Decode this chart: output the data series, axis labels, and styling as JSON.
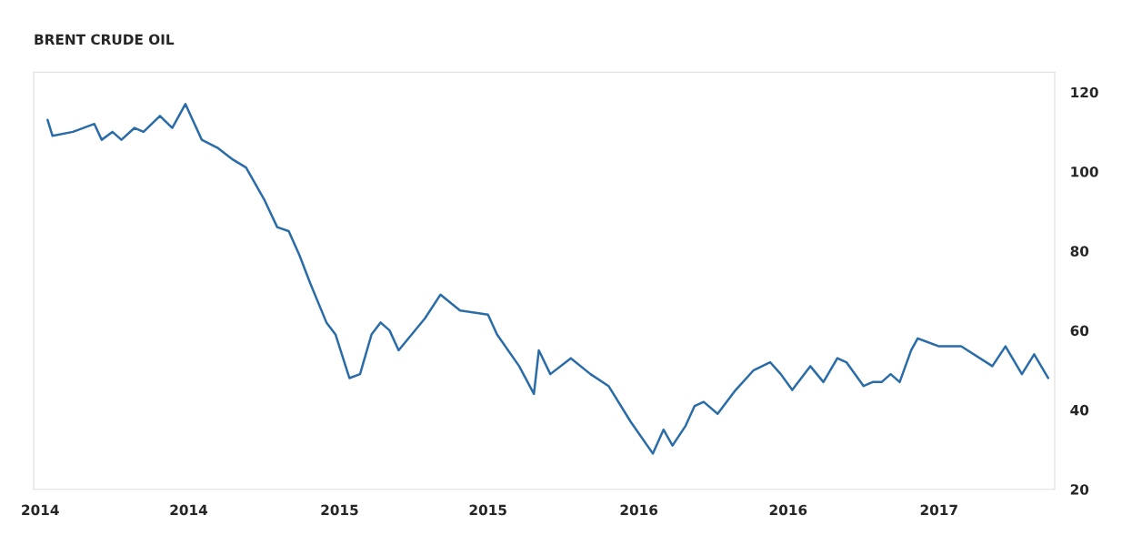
{
  "chart_data": {
    "type": "line",
    "title": "BRENT CRUDE OIL",
    "x": [
      "2014-01-10",
      "2014-01-16",
      "2014-02-10",
      "2014-03-08",
      "2014-03-17",
      "2014-03-30",
      "2014-04-10",
      "2014-04-26",
      "2014-05-07",
      "2014-05-27",
      "2014-06-11",
      "2014-06-27",
      "2014-07-17",
      "2014-08-05",
      "2014-08-24",
      "2014-09-09",
      "2014-09-20",
      "2014-10-01",
      "2014-10-17",
      "2014-10-31",
      "2014-11-13",
      "2014-11-26",
      "2014-12-16",
      "2014-12-27",
      "2015-01-13",
      "2015-01-26",
      "2015-02-09",
      "2015-02-20",
      "2015-03-03",
      "2015-03-14",
      "2015-03-30",
      "2015-04-15",
      "2015-05-04",
      "2015-05-28",
      "2015-07-01",
      "2015-07-12",
      "2015-08-08",
      "2015-08-26",
      "2015-09-01",
      "2015-09-15",
      "2015-10-10",
      "2015-11-03",
      "2015-11-25",
      "2015-12-22",
      "2016-01-18",
      "2016-01-31",
      "2016-02-11",
      "2016-02-27",
      "2016-03-09",
      "2016-03-20",
      "2016-04-06",
      "2016-04-28",
      "2016-05-20",
      "2016-06-09",
      "2016-06-22",
      "2016-07-06",
      "2016-07-28",
      "2016-08-13",
      "2016-08-30",
      "2016-09-10",
      "2016-10-01",
      "2016-10-12",
      "2016-10-23",
      "2016-11-03",
      "2016-11-14",
      "2016-11-28",
      "2016-12-06",
      "2017-01-01",
      "2017-01-17",
      "2017-01-28",
      "2017-03-07",
      "2017-03-23",
      "2017-04-12",
      "2017-04-27",
      "2017-05-14"
    ],
    "series": [
      {
        "color": "#2a6ca8",
        "values": [
          113,
          109,
          110,
          112,
          108,
          110,
          108,
          111,
          110,
          114,
          111,
          117,
          108,
          106,
          103,
          101,
          97,
          93,
          86,
          85,
          79,
          72,
          62,
          59,
          48,
          49,
          59,
          62,
          60,
          55,
          59,
          63,
          69,
          65,
          64,
          59,
          51,
          44,
          55,
          49,
          53,
          49,
          46,
          37,
          29,
          35,
          31,
          36,
          41,
          42,
          39,
          45,
          50,
          52,
          49,
          45,
          51,
          47,
          53,
          52,
          46,
          47,
          47,
          49,
          47,
          55,
          58,
          56,
          56,
          56,
          51,
          56,
          49,
          54,
          48
        ]
      }
    ],
    "xlim": [
      "2013-12-24",
      "2017-05-22"
    ],
    "xticks": [
      {
        "value": "2014-01-01",
        "label": "2014"
      },
      {
        "value": "2014-07-01",
        "label": "2014"
      },
      {
        "value": "2015-01-01",
        "label": "2015"
      },
      {
        "value": "2015-07-01",
        "label": "2015"
      },
      {
        "value": "2016-01-01",
        "label": "2016"
      },
      {
        "value": "2016-07-01",
        "label": "2016"
      },
      {
        "value": "2017-01-01",
        "label": "2017"
      }
    ],
    "ylim": [
      20,
      125
    ],
    "yticks": [
      20,
      40,
      60,
      80,
      100,
      120
    ],
    "grid": false,
    "legend": false,
    "marker": "none",
    "line_style": "solid"
  }
}
